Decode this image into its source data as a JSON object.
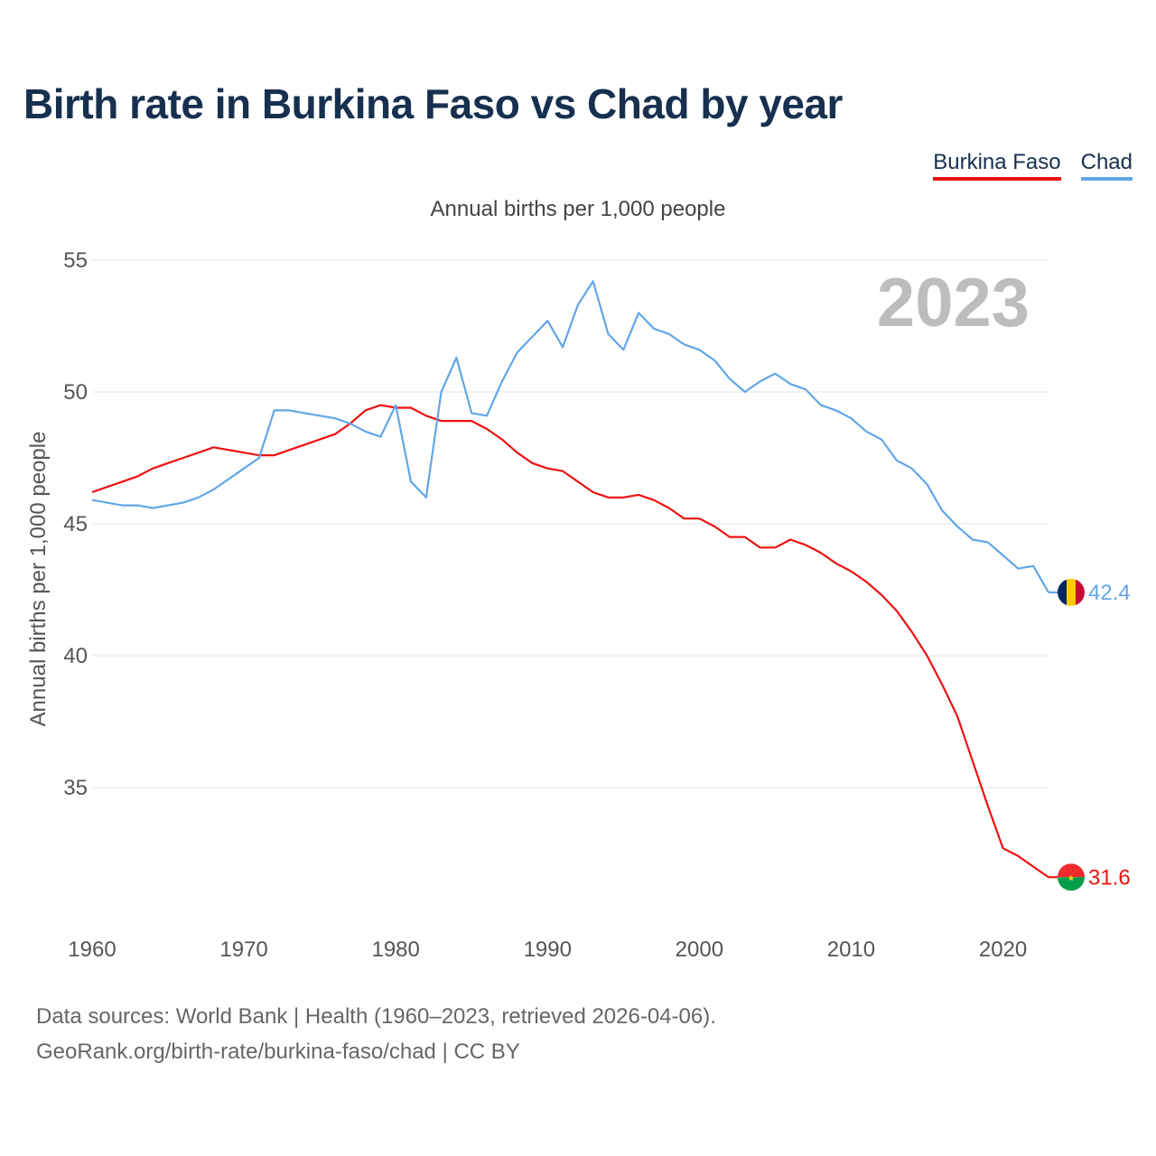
{
  "chart_data": {
    "type": "line",
    "title": "Birth rate in Burkina Faso vs Chad by year",
    "subtitle": "Annual births per 1,000 people",
    "ylabel": "Annual births per 1,000 people",
    "xlabel": "",
    "year_label": "2023",
    "xlim": [
      1960,
      2023
    ],
    "ylim": [
      30.5,
      55
    ],
    "x_ticks": [
      1960,
      1970,
      1980,
      1990,
      2000,
      2010,
      2020
    ],
    "y_ticks": [
      35,
      40,
      45,
      50,
      55
    ],
    "grid": true,
    "legend_position": "top-right",
    "x": [
      1960,
      1961,
      1962,
      1963,
      1964,
      1965,
      1966,
      1967,
      1968,
      1969,
      1970,
      1971,
      1972,
      1973,
      1974,
      1975,
      1976,
      1977,
      1978,
      1979,
      1980,
      1981,
      1982,
      1983,
      1984,
      1985,
      1986,
      1987,
      1988,
      1989,
      1990,
      1991,
      1992,
      1993,
      1994,
      1995,
      1996,
      1997,
      1998,
      1999,
      2000,
      2001,
      2002,
      2003,
      2004,
      2005,
      2006,
      2007,
      2008,
      2009,
      2010,
      2011,
      2012,
      2013,
      2014,
      2015,
      2016,
      2017,
      2018,
      2019,
      2020,
      2021,
      2022,
      2023
    ],
    "series": [
      {
        "name": "Burkina Faso",
        "color": "#ee1111",
        "end_label": "31.6",
        "values": [
          46.2,
          46.4,
          46.6,
          46.8,
          47.1,
          47.3,
          47.5,
          47.7,
          47.9,
          47.8,
          47.7,
          47.6,
          47.6,
          47.8,
          48.0,
          48.2,
          48.4,
          48.8,
          49.3,
          49.5,
          49.4,
          49.4,
          49.1,
          48.9,
          48.9,
          48.9,
          48.6,
          48.2,
          47.7,
          47.3,
          47.1,
          47.0,
          46.6,
          46.2,
          46.0,
          46.0,
          46.1,
          45.9,
          45.6,
          45.2,
          45.2,
          44.9,
          44.5,
          44.5,
          44.1,
          44.1,
          44.4,
          44.2,
          43.9,
          43.5,
          43.2,
          42.8,
          42.3,
          41.7,
          40.9,
          40.0,
          38.9,
          37.7,
          36.0,
          34.3,
          32.7,
          32.4,
          32.0,
          31.6
        ]
      },
      {
        "name": "Chad",
        "color": "#62a6e8",
        "end_label": "42.4",
        "values": [
          45.9,
          45.8,
          45.7,
          45.7,
          45.6,
          45.7,
          45.8,
          46.0,
          46.3,
          46.7,
          47.1,
          47.5,
          49.3,
          49.3,
          49.2,
          49.1,
          49.0,
          48.8,
          48.5,
          48.3,
          49.5,
          46.6,
          46.0,
          50.0,
          51.3,
          49.2,
          49.1,
          50.4,
          51.5,
          52.1,
          52.7,
          51.7,
          53.3,
          54.2,
          52.2,
          51.6,
          53.0,
          52.4,
          52.2,
          51.8,
          51.6,
          51.2,
          50.5,
          50.0,
          50.4,
          50.7,
          50.3,
          50.1,
          49.5,
          49.3,
          49.0,
          48.5,
          48.2,
          47.4,
          47.1,
          46.5,
          45.5,
          44.9,
          44.4,
          44.3,
          43.8,
          43.3,
          43.4,
          42.4
        ]
      }
    ]
  },
  "legend": {
    "items": [
      "Burkina Faso",
      "Chad"
    ]
  },
  "footer": {
    "line1": "Data sources: World Bank | Health (1960–2023, retrieved 2026-04-06).",
    "line2": "GeoRank.org/birth-rate/burkina-faso/chad | CC BY"
  },
  "flags": [
    {
      "name": "Chad",
      "colors": [
        "#002664",
        "#fecb00",
        "#c60c30"
      ]
    },
    {
      "name": "Burkina Faso",
      "colors": [
        "#ef2b2d",
        "#009e49",
        "#fcd116"
      ]
    }
  ]
}
